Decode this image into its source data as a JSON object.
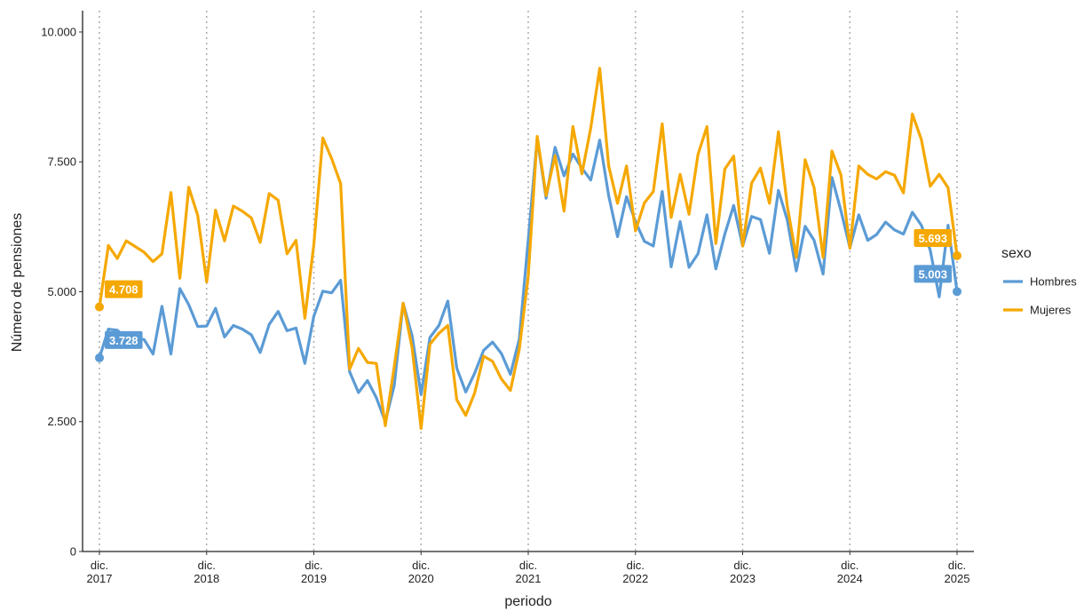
{
  "chart_data": {
    "type": "line",
    "x_label": "periodo",
    "y_label": "Número de pensiones",
    "legend_title": "sexo",
    "legend_position": "right",
    "x": [
      "2017-12",
      "2018-01",
      "2018-02",
      "2018-03",
      "2018-04",
      "2018-05",
      "2018-06",
      "2018-07",
      "2018-08",
      "2018-09",
      "2018-10",
      "2018-11",
      "2018-12",
      "2019-01",
      "2019-02",
      "2019-03",
      "2019-04",
      "2019-05",
      "2019-06",
      "2019-07",
      "2019-08",
      "2019-09",
      "2019-10",
      "2019-11",
      "2019-12",
      "2020-01",
      "2020-02",
      "2020-03",
      "2020-04",
      "2020-05",
      "2020-06",
      "2020-07",
      "2020-08",
      "2020-09",
      "2020-10",
      "2020-11",
      "2020-12",
      "2021-01",
      "2021-02",
      "2021-03",
      "2021-04",
      "2021-05",
      "2021-06",
      "2021-07",
      "2021-08",
      "2021-09",
      "2021-10",
      "2021-11",
      "2021-12",
      "2022-01",
      "2022-02",
      "2022-03",
      "2022-04",
      "2022-05",
      "2022-06",
      "2022-07",
      "2022-08",
      "2022-09",
      "2022-10",
      "2022-11",
      "2022-12",
      "2023-01",
      "2023-02",
      "2023-03",
      "2023-04",
      "2023-05",
      "2023-06",
      "2023-07",
      "2023-08",
      "2023-09",
      "2023-10",
      "2023-11",
      "2023-12",
      "2024-01",
      "2024-02",
      "2024-03",
      "2024-04",
      "2024-05",
      "2024-06",
      "2024-07",
      "2024-08",
      "2024-09",
      "2024-10",
      "2024-11",
      "2024-12",
      "2025-01",
      "2025-02",
      "2025-03",
      "2025-04",
      "2025-05",
      "2025-06",
      "2025-07",
      "2025-08",
      "2025-09",
      "2025-10",
      "2025-11",
      "2025-12"
    ],
    "series": [
      {
        "name": "Hombres",
        "color": "#5b9bd5",
        "values": [
          3728,
          4280,
          4260,
          4100,
          4100,
          4080,
          3800,
          4720,
          3800,
          5060,
          4750,
          4330,
          4340,
          4680,
          4130,
          4350,
          4280,
          4170,
          3830,
          4370,
          4620,
          4250,
          4300,
          3620,
          4530,
          5010,
          4980,
          5220,
          3460,
          3060,
          3290,
          2960,
          2500,
          3200,
          4780,
          4150,
          3020,
          4120,
          4350,
          4820,
          3530,
          3070,
          3430,
          3870,
          4030,
          3810,
          3410,
          4090,
          6000,
          7950,
          6800,
          7780,
          7230,
          7650,
          7380,
          7150,
          7920,
          6850,
          6060,
          6830,
          6350,
          5970,
          5880,
          6930,
          5480,
          6350,
          5470,
          5730,
          6480,
          5440,
          6110,
          6660,
          5880,
          6450,
          6390,
          5740,
          6950,
          6380,
          5400,
          6260,
          5990,
          5340,
          7200,
          6560,
          5850,
          6480,
          5990,
          6100,
          6340,
          6190,
          6110,
          6530,
          6280,
          5800,
          4900,
          6280,
          5003
        ],
        "value_labels": [
          "3.728",
          null,
          null,
          null,
          null,
          null,
          null,
          null,
          null,
          null,
          null,
          null,
          null,
          null,
          null,
          null,
          null,
          null,
          null,
          null,
          null,
          null,
          null,
          null,
          null,
          null,
          null,
          null,
          null,
          null,
          null,
          null,
          null,
          null,
          null,
          null,
          null,
          null,
          null,
          null,
          null,
          null,
          null,
          null,
          null,
          null,
          null,
          null,
          null,
          null,
          null,
          null,
          null,
          null,
          null,
          null,
          null,
          null,
          null,
          null,
          null,
          null,
          null,
          null,
          null,
          null,
          null,
          null,
          null,
          null,
          null,
          null,
          null,
          null,
          null,
          null,
          null,
          null,
          null,
          null,
          null,
          null,
          null,
          null,
          null,
          null,
          null,
          null,
          null,
          null,
          null,
          null,
          null,
          null,
          null,
          null,
          "5.003"
        ]
      },
      {
        "name": "Mujeres",
        "color": "#f5a800",
        "values": [
          4708,
          5890,
          5640,
          5980,
          5870,
          5760,
          5580,
          5730,
          6910,
          5260,
          7010,
          6470,
          5190,
          6570,
          5980,
          6650,
          6550,
          6420,
          5950,
          6890,
          6760,
          5730,
          5990,
          4490,
          5910,
          7960,
          7560,
          7080,
          3510,
          3910,
          3640,
          3620,
          2420,
          3560,
          4780,
          3920,
          2370,
          3990,
          4200,
          4350,
          2920,
          2620,
          3050,
          3760,
          3660,
          3320,
          3100,
          3890,
          5300,
          7990,
          6850,
          7620,
          6550,
          8180,
          7270,
          8150,
          9300,
          7420,
          6700,
          7420,
          6170,
          6710,
          6930,
          8230,
          6430,
          7260,
          6490,
          7640,
          8180,
          5930,
          7360,
          7610,
          5880,
          7090,
          7380,
          6700,
          8080,
          6650,
          5660,
          7540,
          7000,
          5660,
          7710,
          7250,
          5840,
          7420,
          7260,
          7170,
          7310,
          7240,
          6900,
          8420,
          7930,
          7030,
          7260,
          7000,
          5693
        ],
        "value_labels": [
          "4.708",
          null,
          null,
          null,
          null,
          null,
          null,
          null,
          null,
          null,
          null,
          null,
          null,
          null,
          null,
          null,
          null,
          null,
          null,
          null,
          null,
          null,
          null,
          null,
          null,
          null,
          null,
          null,
          null,
          null,
          null,
          null,
          null,
          null,
          null,
          null,
          null,
          null,
          null,
          null,
          null,
          null,
          null,
          null,
          null,
          null,
          null,
          null,
          null,
          null,
          null,
          null,
          null,
          null,
          null,
          null,
          null,
          null,
          null,
          null,
          null,
          null,
          null,
          null,
          null,
          null,
          null,
          null,
          null,
          null,
          null,
          null,
          null,
          null,
          null,
          null,
          null,
          null,
          null,
          null,
          null,
          null,
          null,
          null,
          null,
          null,
          null,
          null,
          null,
          null,
          null,
          null,
          null,
          null,
          null,
          null,
          "5.693"
        ]
      }
    ],
    "ylim": [
      0,
      10410
    ],
    "yticks": [
      0,
      {
        "value": 2500,
        "label": "2.500"
      },
      {
        "value": 5000,
        "label": "5.000"
      },
      {
        "value": 7500,
        "label": "7.500"
      },
      {
        "value": 10000,
        "label": "10.000"
      }
    ],
    "xticks": [
      {
        "value": "2017-12",
        "label": "dic.\n2017"
      },
      {
        "value": "2018-12",
        "label": "dic.\n2018"
      },
      {
        "value": "2019-12",
        "label": "dic.\n2019"
      },
      {
        "value": "2020-12",
        "label": "dic.\n2020"
      },
      {
        "value": "2021-12",
        "label": "dic.\n2021"
      },
      {
        "value": "2022-12",
        "label": "dic.\n2022"
      },
      {
        "value": "2023-12",
        "label": "dic.\n2023"
      },
      {
        "value": "2024-12",
        "label": "dic.\n2024"
      },
      {
        "value": "2025-12",
        "label": "dic.\n2025"
      }
    ],
    "grid": "x-dotted"
  }
}
